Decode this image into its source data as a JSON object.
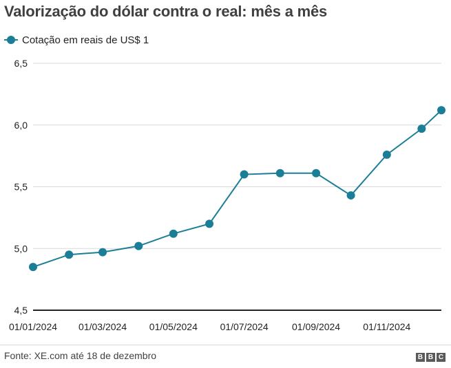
{
  "title": "Valorização do dólar contra o real: mês a mês",
  "legend": {
    "label": "Cotação em reais de US$ 1"
  },
  "source": "Fonte: XE.com até 18 de dezembro",
  "logo": [
    "B",
    "B",
    "C"
  ],
  "colors": {
    "series": "#1b7e97",
    "grid": "#d9d9d9",
    "axis": "#222222",
    "text": "#222222"
  },
  "chart_data": {
    "type": "line",
    "title": "Valorização do dólar contra o real: mês a mês",
    "xlabel": "",
    "ylabel": "",
    "ylim": [
      4.5,
      6.5
    ],
    "y_ticks": [
      4.5,
      5.0,
      5.5,
      6.0,
      6.5
    ],
    "y_tick_labels": [
      "4,5",
      "5,0",
      "5,5",
      "6,0",
      "6,5"
    ],
    "x_tick_labels": [
      "01/01/2024",
      "01/03/2024",
      "01/05/2024",
      "01/07/2024",
      "01/09/2024",
      "01/11/2024"
    ],
    "grid": "horizontal",
    "legend_position": "top-left",
    "series": [
      {
        "name": "Cotação em reais de US$ 1",
        "x": [
          "01/01/2024",
          "01/02/2024",
          "01/03/2024",
          "01/04/2024",
          "01/05/2024",
          "01/06/2024",
          "01/07/2024",
          "01/08/2024",
          "01/09/2024",
          "01/10/2024",
          "01/11/2024",
          "01/12/2024",
          "18/12/2024"
        ],
        "values": [
          4.85,
          4.95,
          4.97,
          5.02,
          5.12,
          5.2,
          5.6,
          5.61,
          5.61,
          5.43,
          5.76,
          5.97,
          6.12
        ]
      }
    ]
  }
}
